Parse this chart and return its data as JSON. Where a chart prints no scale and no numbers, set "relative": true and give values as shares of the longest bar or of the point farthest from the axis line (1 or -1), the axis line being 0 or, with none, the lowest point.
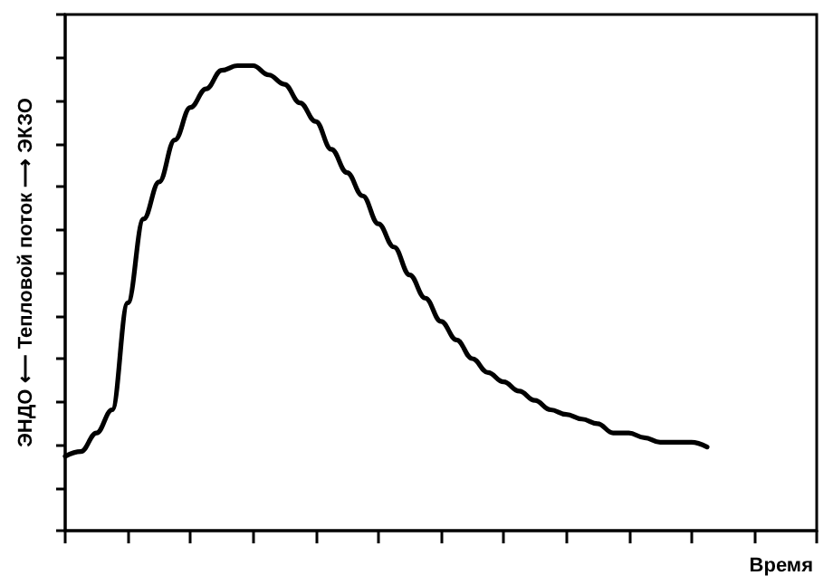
{
  "chart_data": {
    "type": "line",
    "relative": true,
    "xlabel": "Время",
    "ylabel": "ЭНДО ⟵ Тепловой поток ⟶ ЭКЗО",
    "grid": false,
    "line_style": "solid",
    "categories": [
      null,
      null,
      null,
      null,
      null,
      null,
      null,
      null,
      null,
      null,
      null,
      null,
      null,
      null,
      null,
      null,
      null,
      null,
      null,
      null,
      null,
      null,
      null,
      null,
      null,
      null,
      null,
      null,
      null,
      null,
      null,
      null,
      null,
      null,
      null,
      null,
      null,
      null,
      null,
      null,
      null,
      null,
      null,
      null,
      null,
      null,
      null,
      null,
      null
    ],
    "series": [
      {
        "color": "#000000",
        "values": [
          0.16,
          0.17,
          0.21,
          0.26,
          0.49,
          0.67,
          0.75,
          0.84,
          0.91,
          0.95,
          0.99,
          1,
          1,
          0.98,
          0.96,
          0.92,
          0.88,
          0.82,
          0.77,
          0.72,
          0.66,
          0.61,
          0.55,
          0.5,
          0.45,
          0.41,
          0.37,
          0.34,
          0.32,
          0.3,
          0.28,
          0.26,
          0.25,
          0.24,
          0.23,
          0.21,
          0.21,
          0.2,
          0.19,
          0.19,
          0.19,
          0.18,
          null,
          null,
          null,
          null,
          null,
          null,
          null
        ]
      }
    ]
  }
}
